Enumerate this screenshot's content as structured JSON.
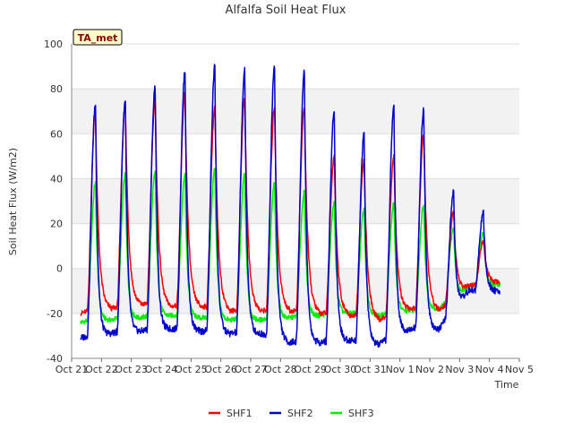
{
  "chart_data": {
    "type": "line",
    "title": "Alfalfa Soil Heat Flux",
    "xlabel": "Time",
    "ylabel": "Soil Heat Flux (W/m2)",
    "badge": "TA_met",
    "xlim": [
      0,
      15
    ],
    "ylim": [
      -40,
      100
    ],
    "yticks": [
      -40,
      -20,
      0,
      20,
      40,
      60,
      80,
      100
    ],
    "xtick_labels": [
      "Oct 21",
      "Oct 22",
      "Oct 23",
      "Oct 24",
      "Oct 25",
      "Oct 26",
      "Oct 27",
      "Oct 28",
      "Oct 29",
      "Oct 30",
      "Oct 31",
      "Nov 1",
      "Nov 2",
      "Nov 3",
      "Nov 4",
      "Nov 5"
    ],
    "colors": {
      "SHF1": "#ff0000",
      "SHF2": "#0000cc",
      "SHF3": "#00ee00",
      "band": "#f2f2f2",
      "grid": "#dddddd",
      "badge_bg": "#ffffcc"
    },
    "data_start_day": 0.3,
    "data_end_day": 14.35,
    "series": [
      {
        "name": "SHF1",
        "peak_day": [
          0.8,
          1.8,
          2.8,
          3.8,
          4.8,
          5.8,
          6.8,
          7.8,
          8.8,
          9.8,
          10.8,
          11.8,
          12.8,
          13.8
        ],
        "peaks": [
          70,
          74,
          75,
          78,
          72,
          76,
          72,
          72,
          50,
          48,
          50,
          60,
          25,
          12
        ],
        "troughs": [
          -20,
          -18,
          -16,
          -17,
          -17,
          -19,
          -19,
          -19,
          -20,
          -21,
          -23,
          -18,
          -19,
          -8,
          -6
        ]
      },
      {
        "name": "SHF2",
        "peak_day": [
          0.8,
          1.8,
          2.8,
          3.8,
          4.8,
          5.8,
          6.8,
          7.8,
          8.8,
          9.8,
          10.8,
          11.8,
          12.8,
          13.8
        ],
        "peaks": [
          73,
          75,
          81,
          88,
          90,
          88,
          90,
          88,
          71,
          60,
          72,
          71,
          34,
          25
        ],
        "troughs": [
          -31,
          -29,
          -28,
          -27,
          -28,
          -29,
          -29,
          -33,
          -33,
          -32,
          -34,
          -27,
          -27,
          -10,
          -10
        ]
      },
      {
        "name": "SHF3",
        "peak_day": [
          0.8,
          1.8,
          2.8,
          3.8,
          4.8,
          5.8,
          6.8,
          7.8,
          8.8,
          9.8,
          10.8,
          11.8,
          12.8,
          13.8
        ],
        "peaks": [
          38,
          42,
          43,
          42,
          45,
          42,
          38,
          34,
          29,
          26,
          29,
          28,
          18,
          16
        ],
        "troughs": [
          -24,
          -23,
          -22,
          -21,
          -22,
          -23,
          -23,
          -22,
          -21,
          -20,
          -21,
          -19,
          -18,
          -8,
          -7
        ]
      }
    ],
    "legend": [
      "SHF1",
      "SHF2",
      "SHF3"
    ]
  }
}
